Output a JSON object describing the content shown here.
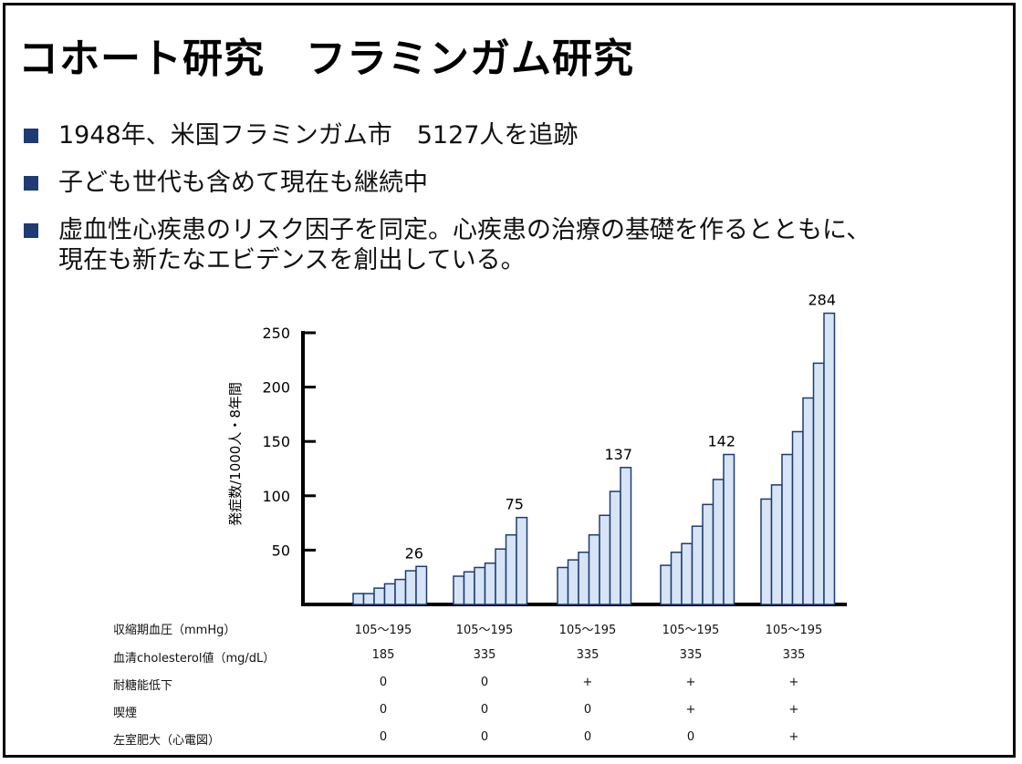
{
  "slide": {
    "title": "コホート研究　フラミンガム研究",
    "bullets": [
      "1948年、米国フラミンガム市　5127人を追跡",
      "子ども世代も含めて現在も継続中",
      "虚血性心疾患のリスク因子を同定。心疾患の治療の基礎を作るとともに、\n現在も新たなエビデンスを創出している。"
    ],
    "colors": {
      "bullet": "#1f3b73",
      "bar_fill": "#d6e4f5",
      "bar_stroke": "#1f3b73",
      "axis": "#000000"
    }
  },
  "chart_data": {
    "type": "bar",
    "ylabel": "発症数/1000人・8年間",
    "ylim": [
      0,
      250
    ],
    "yticks": [
      50,
      100,
      150,
      200,
      250
    ],
    "groups": [
      {
        "values": [
          10,
          10,
          15,
          19,
          23,
          31,
          35
        ],
        "label": "26"
      },
      {
        "values": [
          26,
          30,
          34,
          38,
          51,
          64,
          80
        ],
        "label": "75"
      },
      {
        "values": [
          34,
          41,
          48,
          64,
          82,
          104,
          126
        ],
        "label": "137"
      },
      {
        "values": [
          36,
          48,
          56,
          72,
          92,
          115,
          138
        ],
        "label": "142"
      },
      {
        "values": [
          97,
          110,
          138,
          159,
          190,
          222,
          268
        ],
        "label": "284"
      }
    ],
    "table": {
      "rows": [
        {
          "label": "収縮期血圧（mmHg）",
          "cells": [
            "105〜195",
            "105〜195",
            "105〜195",
            "105〜195",
            "105〜195"
          ]
        },
        {
          "label": "血清cholesterol値（mg/dL）",
          "cells": [
            "185",
            "335",
            "335",
            "335",
            "335"
          ]
        },
        {
          "label": "耐糖能低下",
          "cells": [
            "0",
            "0",
            "+",
            "+",
            "+"
          ]
        },
        {
          "label": "喫煙",
          "cells": [
            "0",
            "0",
            "0",
            "+",
            "+"
          ]
        },
        {
          "label": "左室肥大（心電図）",
          "cells": [
            "0",
            "0",
            "0",
            "0",
            "+"
          ]
        }
      ]
    }
  }
}
